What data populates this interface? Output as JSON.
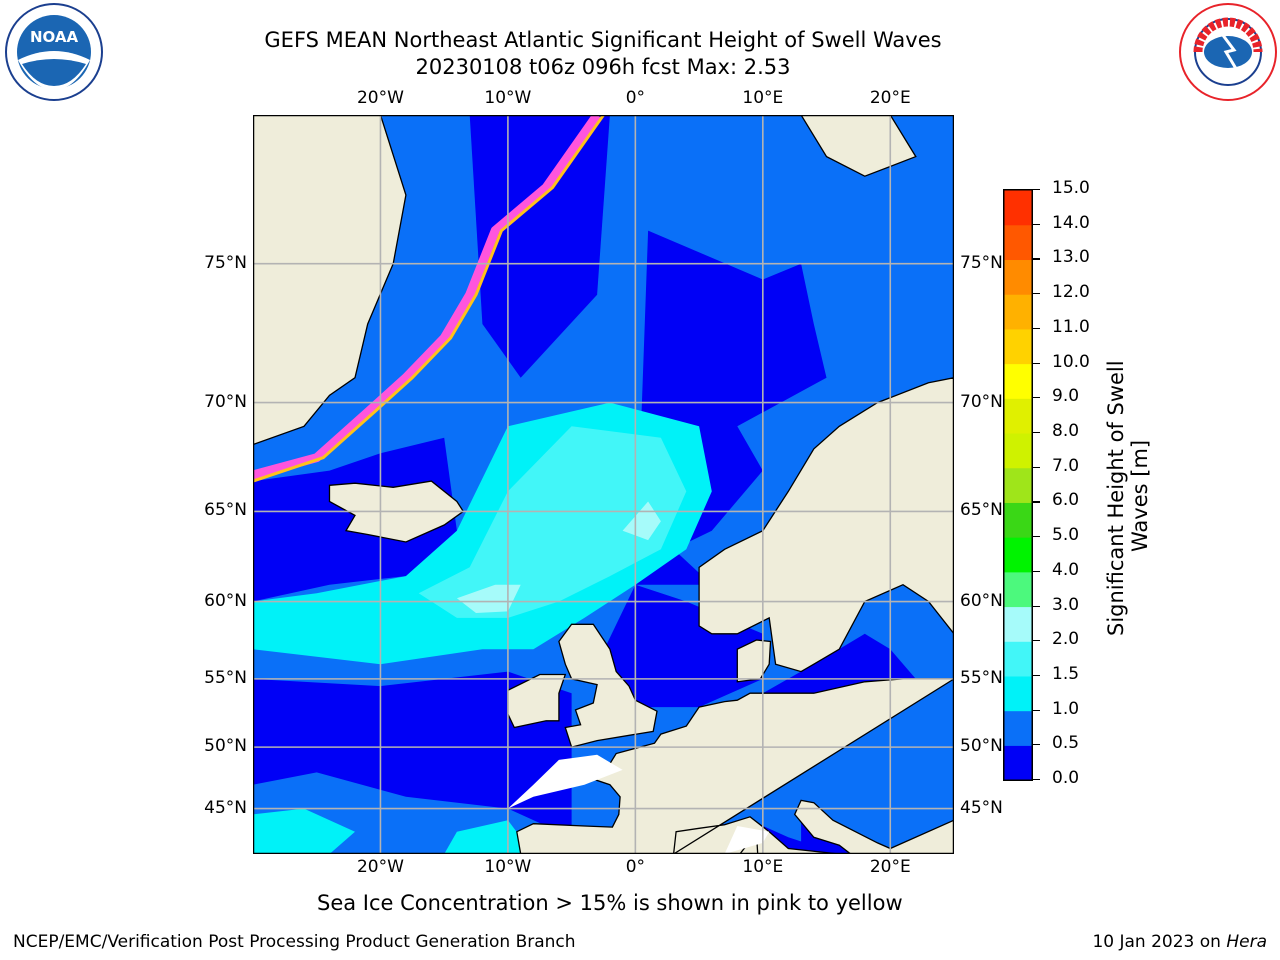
{
  "header": {
    "title_line1": "GEFS MEAN Northeast Atlantic Significant Height of Swell Waves",
    "title_line2": "20230108 t06z 096h fcst   Max: 2.53"
  },
  "logos": {
    "left": {
      "text": "NOAA",
      "icon": "noaa-logo-icon",
      "color": "#1b66b3"
    },
    "right": {
      "text": "NATIONAL WEATHER SERVICE",
      "icon": "nws-logo-icon",
      "color": "#e8232a"
    }
  },
  "map": {
    "lon_range": [
      -30,
      25
    ],
    "lat_range": [
      41,
      79
    ],
    "lon_ticks": [
      {
        "value": -20,
        "label": "20°W"
      },
      {
        "value": -10,
        "label": "10°W"
      },
      {
        "value": 0,
        "label": "0°"
      },
      {
        "value": 10,
        "label": "10°E"
      },
      {
        "value": 20,
        "label": "20°E"
      }
    ],
    "lat_ticks": [
      {
        "value": 75,
        "label": "75°N"
      },
      {
        "value": 70,
        "label": "70°N"
      },
      {
        "value": 65,
        "label": "65°N"
      },
      {
        "value": 60,
        "label": "60°N"
      },
      {
        "value": 55,
        "label": "55°N"
      },
      {
        "value": 50,
        "label": "50°N"
      },
      {
        "value": 45,
        "label": "45°N"
      }
    ],
    "land_color": "#efedda",
    "grid_color": "#b3b3b3"
  },
  "colorbar": {
    "levels": [
      0.0,
      0.5,
      1.0,
      1.5,
      2.0,
      3.0,
      4.0,
      5.0,
      6.0,
      7.0,
      8.0,
      9.0,
      10.0,
      11.0,
      12.0,
      13.0,
      14.0,
      15.0
    ],
    "tick_labels": [
      "0.0",
      "0.5",
      "1.0",
      "1.5",
      "2.0",
      "3.0",
      "4.0",
      "5.0",
      "6.0",
      "7.0",
      "8.0",
      "9.0",
      "10.0",
      "11.0",
      "12.0",
      "13.0",
      "14.0",
      "15.0"
    ],
    "colors": [
      "#0000f6",
      "#0a70f8",
      "#00f2f8",
      "#42f6f8",
      "#a6fbfa",
      "#4cf97d",
      "#00f300",
      "#3ad716",
      "#9fe51a",
      "#cff200",
      "#e0f000",
      "#ffff00",
      "#ffd200",
      "#ffb100",
      "#ff8b00",
      "#ff5800",
      "#ff3000",
      "#ff0000"
    ],
    "label_line1": "Significant Height of Swell",
    "label_line2": "Waves [m]"
  },
  "note": "Sea Ice Concentration > 15% is shown in pink to yellow",
  "footer": {
    "left": "NCEP/EMC/Verification Post Processing Product Generation Branch",
    "right_date": "10 Jan 2023 on ",
    "right_host": "Hera"
  }
}
